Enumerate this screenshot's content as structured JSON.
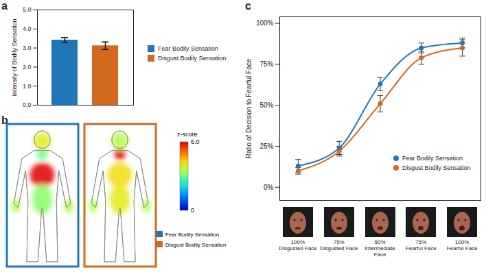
{
  "chart_data": [
    {
      "panel": "a",
      "type": "bar",
      "ylabel": "Intensity of Bodily Sensation",
      "categories": [
        "Fear Bodily Sensation",
        "Disgust Bodily Sensation"
      ],
      "values": [
        3.42,
        3.12
      ],
      "errors": [
        0.13,
        0.2
      ],
      "colors": [
        "#1f77b8",
        "#d2691e"
      ],
      "ylim": [
        0,
        5
      ],
      "yticks": [
        0,
        1,
        2,
        3,
        4,
        5
      ],
      "tick_labels": "y",
      "legend": "right"
    },
    {
      "panel": "b",
      "type": "body_map",
      "series": [
        {
          "name": "Fear Bodily Sensation",
          "color": "#1f77b8",
          "hotspots": [
            4.0,
            3.0,
            6.0,
            3.2,
            3.5
          ]
        },
        {
          "name": "Disgust Bodily Sensation",
          "color": "#d2691e",
          "hotspots": [
            3.5,
            6.0,
            4.2,
            4.0,
            3.5
          ]
        }
      ],
      "colorbar": {
        "title": "z-score",
        "range": [
          0,
          6
        ],
        "ticks": [
          {
            "value": 0,
            "label": "0"
          },
          {
            "value": 6,
            "label": "6.0"
          }
        ]
      },
      "legend": "right"
    },
    {
      "panel": "c",
      "type": "line",
      "ylabel": "Ratio of Decision to Fearful Face",
      "categories": [
        "100% Disgusted Face",
        "75% Disgusted Face",
        "50% Intermediate Face",
        "75% Fearful Face",
        "100% Fearful Face"
      ],
      "series": [
        {
          "name": "Fear Bodily Sensation",
          "color": "#1f77b8",
          "marker": "circle",
          "values": [
            13,
            24,
            63,
            85,
            88
          ],
          "errors": [
            4,
            4,
            4,
            3,
            3
          ]
        },
        {
          "name": "Disgust Bodily Sensation",
          "color": "#d2691e",
          "marker": "circle",
          "values": [
            10,
            22,
            51,
            79,
            85
          ],
          "errors": [
            2,
            3,
            5,
            4,
            5
          ]
        }
      ],
      "ylim": [
        -8,
        104
      ],
      "yticks": [
        {
          "value": 0,
          "label": "0%"
        },
        {
          "value": 25,
          "label": "25%"
        },
        {
          "value": 50,
          "label": "50%"
        },
        {
          "value": 75,
          "label": "75%"
        },
        {
          "value": 100,
          "label": "100%"
        }
      ],
      "legend": "bottom-right"
    }
  ]
}
